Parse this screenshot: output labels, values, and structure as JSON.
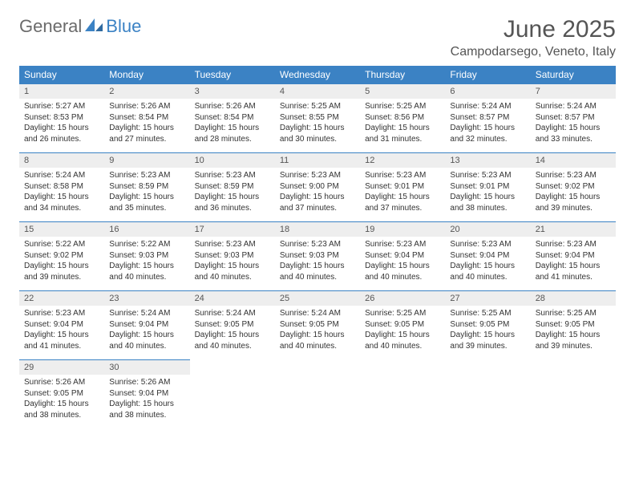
{
  "logo": {
    "text1": "General",
    "text2": "Blue"
  },
  "header": {
    "month_title": "June 2025",
    "location": "Campodarsego, Veneto, Italy"
  },
  "style": {
    "brand_color": "#3b82c4",
    "header_text_color": "#555555",
    "day_header_bg": "#eeeeee",
    "body_text_color": "#333333",
    "page_bg": "#ffffff",
    "th_fontsize": 12,
    "daynum_fontsize": 11,
    "body_fontsize": 10,
    "title_fontsize": 30,
    "location_fontsize": 16
  },
  "weekdays": [
    "Sunday",
    "Monday",
    "Tuesday",
    "Wednesday",
    "Thursday",
    "Friday",
    "Saturday"
  ],
  "days": [
    {
      "n": "1",
      "sr": "Sunrise: 5:27 AM",
      "ss": "Sunset: 8:53 PM",
      "dl": "Daylight: 15 hours and 26 minutes."
    },
    {
      "n": "2",
      "sr": "Sunrise: 5:26 AM",
      "ss": "Sunset: 8:54 PM",
      "dl": "Daylight: 15 hours and 27 minutes."
    },
    {
      "n": "3",
      "sr": "Sunrise: 5:26 AM",
      "ss": "Sunset: 8:54 PM",
      "dl": "Daylight: 15 hours and 28 minutes."
    },
    {
      "n": "4",
      "sr": "Sunrise: 5:25 AM",
      "ss": "Sunset: 8:55 PM",
      "dl": "Daylight: 15 hours and 30 minutes."
    },
    {
      "n": "5",
      "sr": "Sunrise: 5:25 AM",
      "ss": "Sunset: 8:56 PM",
      "dl": "Daylight: 15 hours and 31 minutes."
    },
    {
      "n": "6",
      "sr": "Sunrise: 5:24 AM",
      "ss": "Sunset: 8:57 PM",
      "dl": "Daylight: 15 hours and 32 minutes."
    },
    {
      "n": "7",
      "sr": "Sunrise: 5:24 AM",
      "ss": "Sunset: 8:57 PM",
      "dl": "Daylight: 15 hours and 33 minutes."
    },
    {
      "n": "8",
      "sr": "Sunrise: 5:24 AM",
      "ss": "Sunset: 8:58 PM",
      "dl": "Daylight: 15 hours and 34 minutes."
    },
    {
      "n": "9",
      "sr": "Sunrise: 5:23 AM",
      "ss": "Sunset: 8:59 PM",
      "dl": "Daylight: 15 hours and 35 minutes."
    },
    {
      "n": "10",
      "sr": "Sunrise: 5:23 AM",
      "ss": "Sunset: 8:59 PM",
      "dl": "Daylight: 15 hours and 36 minutes."
    },
    {
      "n": "11",
      "sr": "Sunrise: 5:23 AM",
      "ss": "Sunset: 9:00 PM",
      "dl": "Daylight: 15 hours and 37 minutes."
    },
    {
      "n": "12",
      "sr": "Sunrise: 5:23 AM",
      "ss": "Sunset: 9:01 PM",
      "dl": "Daylight: 15 hours and 37 minutes."
    },
    {
      "n": "13",
      "sr": "Sunrise: 5:23 AM",
      "ss": "Sunset: 9:01 PM",
      "dl": "Daylight: 15 hours and 38 minutes."
    },
    {
      "n": "14",
      "sr": "Sunrise: 5:23 AM",
      "ss": "Sunset: 9:02 PM",
      "dl": "Daylight: 15 hours and 39 minutes."
    },
    {
      "n": "15",
      "sr": "Sunrise: 5:22 AM",
      "ss": "Sunset: 9:02 PM",
      "dl": "Daylight: 15 hours and 39 minutes."
    },
    {
      "n": "16",
      "sr": "Sunrise: 5:22 AM",
      "ss": "Sunset: 9:03 PM",
      "dl": "Daylight: 15 hours and 40 minutes."
    },
    {
      "n": "17",
      "sr": "Sunrise: 5:23 AM",
      "ss": "Sunset: 9:03 PM",
      "dl": "Daylight: 15 hours and 40 minutes."
    },
    {
      "n": "18",
      "sr": "Sunrise: 5:23 AM",
      "ss": "Sunset: 9:03 PM",
      "dl": "Daylight: 15 hours and 40 minutes."
    },
    {
      "n": "19",
      "sr": "Sunrise: 5:23 AM",
      "ss": "Sunset: 9:04 PM",
      "dl": "Daylight: 15 hours and 40 minutes."
    },
    {
      "n": "20",
      "sr": "Sunrise: 5:23 AM",
      "ss": "Sunset: 9:04 PM",
      "dl": "Daylight: 15 hours and 40 minutes."
    },
    {
      "n": "21",
      "sr": "Sunrise: 5:23 AM",
      "ss": "Sunset: 9:04 PM",
      "dl": "Daylight: 15 hours and 41 minutes."
    },
    {
      "n": "22",
      "sr": "Sunrise: 5:23 AM",
      "ss": "Sunset: 9:04 PM",
      "dl": "Daylight: 15 hours and 41 minutes."
    },
    {
      "n": "23",
      "sr": "Sunrise: 5:24 AM",
      "ss": "Sunset: 9:04 PM",
      "dl": "Daylight: 15 hours and 40 minutes."
    },
    {
      "n": "24",
      "sr": "Sunrise: 5:24 AM",
      "ss": "Sunset: 9:05 PM",
      "dl": "Daylight: 15 hours and 40 minutes."
    },
    {
      "n": "25",
      "sr": "Sunrise: 5:24 AM",
      "ss": "Sunset: 9:05 PM",
      "dl": "Daylight: 15 hours and 40 minutes."
    },
    {
      "n": "26",
      "sr": "Sunrise: 5:25 AM",
      "ss": "Sunset: 9:05 PM",
      "dl": "Daylight: 15 hours and 40 minutes."
    },
    {
      "n": "27",
      "sr": "Sunrise: 5:25 AM",
      "ss": "Sunset: 9:05 PM",
      "dl": "Daylight: 15 hours and 39 minutes."
    },
    {
      "n": "28",
      "sr": "Sunrise: 5:25 AM",
      "ss": "Sunset: 9:05 PM",
      "dl": "Daylight: 15 hours and 39 minutes."
    },
    {
      "n": "29",
      "sr": "Sunrise: 5:26 AM",
      "ss": "Sunset: 9:05 PM",
      "dl": "Daylight: 15 hours and 38 minutes."
    },
    {
      "n": "30",
      "sr": "Sunrise: 5:26 AM",
      "ss": "Sunset: 9:04 PM",
      "dl": "Daylight: 15 hours and 38 minutes."
    }
  ]
}
